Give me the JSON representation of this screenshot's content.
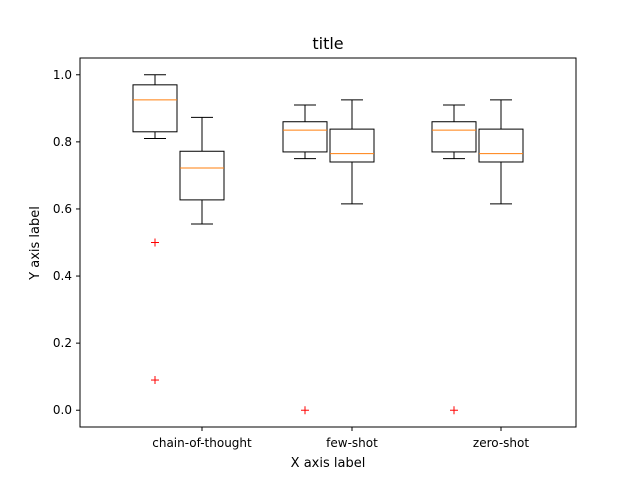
{
  "chart_data": {
    "type": "box",
    "title": "title",
    "xlabel": "X axis label",
    "ylabel": "Y axis label",
    "categories": [
      "chain-of-thought",
      "few-shot",
      "zero-shot"
    ],
    "ylim": [
      -0.05,
      1.05
    ],
    "yticks": [
      0.0,
      0.2,
      0.4,
      0.6,
      0.8,
      1.0
    ],
    "ytick_labels": [
      "0.0",
      "0.2",
      "0.4",
      "0.6",
      "0.8",
      "1.0"
    ],
    "grid": false,
    "colors": {
      "median": "#ff7f0e",
      "outlier": "#ff0000",
      "box": "#000000"
    },
    "boxes": [
      {
        "category": "chain-of-thought",
        "slot": "left",
        "whisker_low": 0.81,
        "q1": 0.83,
        "median": 0.925,
        "q3": 0.97,
        "whisker_high": 1.0,
        "outliers": [
          0.5,
          0.09
        ]
      },
      {
        "category": "chain-of-thought",
        "slot": "right",
        "whisker_low": 0.555,
        "q1": 0.627,
        "median": 0.722,
        "q3": 0.772,
        "whisker_high": 0.873,
        "outliers": []
      },
      {
        "category": "few-shot",
        "slot": "left",
        "whisker_low": 0.75,
        "q1": 0.77,
        "median": 0.835,
        "q3": 0.86,
        "whisker_high": 0.91,
        "outliers": [
          0.0
        ]
      },
      {
        "category": "few-shot",
        "slot": "right",
        "whisker_low": 0.615,
        "q1": 0.74,
        "median": 0.765,
        "q3": 0.838,
        "whisker_high": 0.925,
        "outliers": []
      },
      {
        "category": "zero-shot",
        "slot": "left",
        "whisker_low": 0.75,
        "q1": 0.77,
        "median": 0.835,
        "q3": 0.86,
        "whisker_high": 0.91,
        "outliers": [
          0.0
        ]
      },
      {
        "category": "zero-shot",
        "slot": "right",
        "whisker_low": 0.615,
        "q1": 0.74,
        "median": 0.765,
        "q3": 0.838,
        "whisker_high": 0.925,
        "outliers": []
      }
    ]
  }
}
